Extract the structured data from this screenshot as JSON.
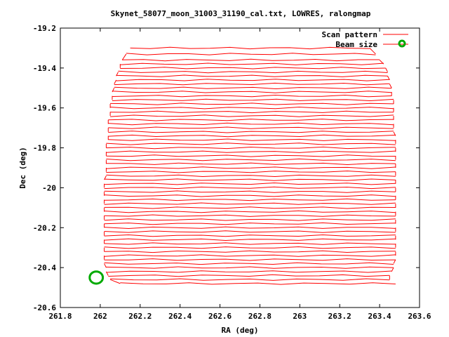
{
  "chart_data": {
    "type": "line",
    "title": "Skynet_58077_moon_31003_31190_cal.txt, LOWRES, ralongmap",
    "xlabel": "RA (deg)",
    "ylabel": "Dec (deg)",
    "xlim": [
      261.8,
      263.6
    ],
    "ylim": [
      -20.6,
      -19.2
    ],
    "xticks": [
      "261.8",
      "262",
      "262.2",
      "262.4",
      "262.6",
      "262.8",
      "263",
      "263.2",
      "263.4",
      "263.6"
    ],
    "yticks": [
      "-19.2",
      "-19.4",
      "-19.6",
      "-19.8",
      "-20",
      "-20.2",
      "-20.4",
      "-20.6"
    ],
    "legend_position": "top-right",
    "grid": false,
    "series": [
      {
        "name": "Scan pattern",
        "color": "#ff0000",
        "scan_rows_dec": [
          -19.3,
          -19.33,
          -19.36,
          -19.38,
          -19.4,
          -19.42,
          -19.44,
          -19.46,
          -19.48,
          -19.5,
          -19.52,
          -19.54,
          -19.56,
          -19.58,
          -19.6,
          -19.62,
          -19.64,
          -19.66,
          -19.68,
          -19.7,
          -19.72,
          -19.74,
          -19.76,
          -19.78,
          -19.8,
          -19.82,
          -19.84,
          -19.86,
          -19.88,
          -19.9,
          -19.92,
          -19.94,
          -19.96,
          -19.98,
          -20.0,
          -20.02,
          -20.04,
          -20.06,
          -20.08,
          -20.1,
          -20.12,
          -20.14,
          -20.16,
          -20.18,
          -20.2,
          -20.22,
          -20.24,
          -20.26,
          -20.28,
          -20.3,
          -20.32,
          -20.34,
          -20.36,
          -20.38,
          -20.4,
          -20.42,
          -20.44,
          -20.46,
          -20.48
        ],
        "ra_start": [
          262.15,
          262.13,
          262.11,
          262.1,
          262.1,
          262.09,
          262.08,
          262.08,
          262.07,
          262.07,
          262.06,
          262.06,
          262.06,
          262.05,
          262.05,
          262.05,
          262.05,
          262.04,
          262.04,
          262.04,
          262.04,
          262.04,
          262.04,
          262.03,
          262.03,
          262.03,
          262.03,
          262.03,
          262.03,
          262.03,
          262.03,
          262.03,
          262.02,
          262.02,
          262.02,
          262.02,
          262.02,
          262.02,
          262.02,
          262.02,
          262.02,
          262.02,
          262.02,
          262.02,
          262.02,
          262.02,
          262.02,
          262.02,
          262.02,
          262.02,
          262.02,
          262.02,
          262.02,
          262.02,
          262.03,
          262.03,
          262.04,
          262.05,
          262.1
        ],
        "ra_end": [
          263.35,
          263.38,
          263.4,
          263.42,
          263.43,
          263.44,
          263.44,
          263.45,
          263.45,
          263.46,
          263.46,
          263.46,
          263.47,
          263.47,
          263.47,
          263.47,
          263.47,
          263.47,
          263.47,
          263.47,
          263.47,
          263.48,
          263.48,
          263.48,
          263.48,
          263.48,
          263.48,
          263.48,
          263.48,
          263.48,
          263.48,
          263.48,
          263.48,
          263.48,
          263.48,
          263.48,
          263.48,
          263.48,
          263.48,
          263.48,
          263.48,
          263.48,
          263.48,
          263.48,
          263.48,
          263.48,
          263.48,
          263.48,
          263.48,
          263.48,
          263.48,
          263.48,
          263.48,
          263.47,
          263.47,
          263.46,
          263.45,
          263.45,
          263.48
        ]
      },
      {
        "name": "Beam size",
        "color": "#00aa00",
        "circle_center": [
          261.98,
          -20.45
        ],
        "circle_radius_deg": 0.055
      }
    ]
  }
}
